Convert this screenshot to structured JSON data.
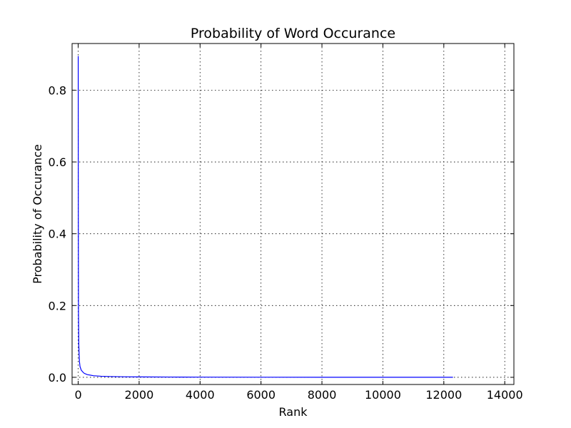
{
  "chart_data": {
    "type": "line",
    "title": "Probability of Word Occurance",
    "xlabel": "Rank",
    "ylabel": "Probability of Occurance",
    "xlim": [
      -200,
      14300
    ],
    "ylim": [
      -0.02,
      0.93
    ],
    "x_ticks": [
      {
        "value": 0,
        "label": "0"
      },
      {
        "value": 2000,
        "label": "2000"
      },
      {
        "value": 4000,
        "label": "4000"
      },
      {
        "value": 6000,
        "label": "6000"
      },
      {
        "value": 8000,
        "label": "8000"
      },
      {
        "value": 10000,
        "label": "10000"
      },
      {
        "value": 12000,
        "label": "12000"
      },
      {
        "value": 14000,
        "label": "14000"
      }
    ],
    "y_ticks": [
      {
        "value": 0.0,
        "label": "0.0"
      },
      {
        "value": 0.2,
        "label": "0.2"
      },
      {
        "value": 0.4,
        "label": "0.4"
      },
      {
        "value": 0.6,
        "label": "0.6"
      },
      {
        "value": 0.8,
        "label": "0.8"
      }
    ],
    "grid": true,
    "series": [
      {
        "color": "#0000ff",
        "x": [
          1,
          5,
          10,
          20,
          40,
          60,
          100,
          150,
          200,
          300,
          500,
          750,
          1000,
          1500,
          2000,
          3000,
          4000,
          6000,
          8000,
          10000,
          12000,
          12300
        ],
        "y": [
          0.895,
          0.45,
          0.18,
          0.09,
          0.045,
          0.03,
          0.02,
          0.015,
          0.011,
          0.0075,
          0.0045,
          0.003,
          0.0022,
          0.0015,
          0.0011,
          0.0007,
          0.0005,
          0.0003,
          0.0002,
          0.00015,
          0.0001,
          0.0001
        ]
      }
    ]
  }
}
